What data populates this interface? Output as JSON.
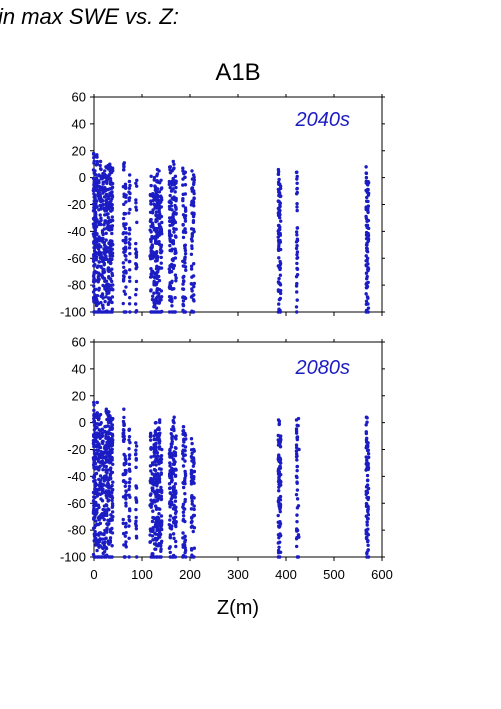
{
  "page": {
    "title": "in max SWE vs. Z:"
  },
  "colors": {
    "points": "#1c1cc4",
    "decade_label": "#1c1cc4",
    "frame": "#000000"
  },
  "chart_data": [
    {
      "type": "scatter",
      "title": "A1B",
      "annotation": "2040s",
      "xlabel": "",
      "ylabel": "",
      "xlim": [
        0,
        600
      ],
      "ylim": [
        -100,
        60
      ],
      "yticks": [
        -100,
        -80,
        -60,
        -40,
        -20,
        0,
        20,
        40,
        60
      ],
      "xticks": [
        0,
        100,
        200,
        300,
        400,
        500,
        600
      ],
      "show_x_tick_labels": false,
      "grid": false,
      "columns": [
        {
          "x": 0,
          "top": 18,
          "count": 70
        },
        {
          "x": 3,
          "top": 5,
          "count": 45
        },
        {
          "x": 6,
          "top": 17,
          "count": 40
        },
        {
          "x": 10,
          "top": 2,
          "count": 40
        },
        {
          "x": 14,
          "top": 12,
          "count": 35
        },
        {
          "x": 18,
          "top": 3,
          "count": 40
        },
        {
          "x": 22,
          "top": 5,
          "count": 35
        },
        {
          "x": 26,
          "top": 8,
          "count": 50
        },
        {
          "x": 30,
          "top": 9,
          "count": 50
        },
        {
          "x": 34,
          "top": 10,
          "count": 55
        },
        {
          "x": 38,
          "top": 7,
          "count": 45
        },
        {
          "x": 62,
          "top": 11,
          "count": 30
        },
        {
          "x": 66,
          "top": -5,
          "count": 25
        },
        {
          "x": 74,
          "top": 2,
          "count": 25
        },
        {
          "x": 88,
          "top": -2,
          "count": 22
        },
        {
          "x": 118,
          "top": 1,
          "count": 30
        },
        {
          "x": 122,
          "top": -12,
          "count": 25
        },
        {
          "x": 126,
          "top": 0,
          "count": 30
        },
        {
          "x": 129,
          "top": -7,
          "count": 40
        },
        {
          "x": 132,
          "top": 6,
          "count": 45
        },
        {
          "x": 136,
          "top": 5,
          "count": 40
        },
        {
          "x": 140,
          "top": -2,
          "count": 30
        },
        {
          "x": 158,
          "top": 8,
          "count": 35
        },
        {
          "x": 162,
          "top": 5,
          "count": 30
        },
        {
          "x": 166,
          "top": 12,
          "count": 35
        },
        {
          "x": 170,
          "top": 1,
          "count": 30
        },
        {
          "x": 186,
          "top": 7,
          "count": 30
        },
        {
          "x": 190,
          "top": 4,
          "count": 28
        },
        {
          "x": 204,
          "top": 5,
          "count": 30
        },
        {
          "x": 208,
          "top": 2,
          "count": 28
        },
        {
          "x": 385,
          "top": 6,
          "count": 45
        },
        {
          "x": 388,
          "top": -5,
          "count": 35
        },
        {
          "x": 423,
          "top": 4,
          "count": 35
        },
        {
          "x": 568,
          "top": 8,
          "count": 45
        },
        {
          "x": 571,
          "top": -3,
          "count": 35
        }
      ]
    },
    {
      "type": "scatter",
      "title": "",
      "annotation": "2080s",
      "xlabel": "Z(m)",
      "ylabel": "",
      "xlim": [
        0,
        600
      ],
      "ylim": [
        -100,
        60
      ],
      "yticks": [
        -100,
        -80,
        -60,
        -40,
        -20,
        0,
        20,
        40,
        60
      ],
      "xticks": [
        0,
        100,
        200,
        300,
        400,
        500,
        600
      ],
      "show_x_tick_labels": true,
      "grid": false,
      "columns": [
        {
          "x": 0,
          "top": 15,
          "count": 60
        },
        {
          "x": 3,
          "top": 6,
          "count": 40
        },
        {
          "x": 6,
          "top": 15,
          "count": 35
        },
        {
          "x": 10,
          "top": 5,
          "count": 35
        },
        {
          "x": 14,
          "top": 6,
          "count": 30
        },
        {
          "x": 18,
          "top": -5,
          "count": 35
        },
        {
          "x": 22,
          "top": -3,
          "count": 30
        },
        {
          "x": 26,
          "top": 10,
          "count": 50
        },
        {
          "x": 30,
          "top": 8,
          "count": 50
        },
        {
          "x": 34,
          "top": 5,
          "count": 55
        },
        {
          "x": 38,
          "top": 3,
          "count": 45
        },
        {
          "x": 62,
          "top": 10,
          "count": 30
        },
        {
          "x": 66,
          "top": -25,
          "count": 25
        },
        {
          "x": 74,
          "top": -5,
          "count": 25
        },
        {
          "x": 88,
          "top": -15,
          "count": 22
        },
        {
          "x": 118,
          "top": -8,
          "count": 30
        },
        {
          "x": 122,
          "top": -30,
          "count": 25
        },
        {
          "x": 126,
          "top": -10,
          "count": 30
        },
        {
          "x": 129,
          "top": 0,
          "count": 40
        },
        {
          "x": 132,
          "top": -5,
          "count": 45
        },
        {
          "x": 136,
          "top": 2,
          "count": 40
        },
        {
          "x": 140,
          "top": -20,
          "count": 30
        },
        {
          "x": 158,
          "top": -20,
          "count": 35
        },
        {
          "x": 162,
          "top": -5,
          "count": 30
        },
        {
          "x": 166,
          "top": 4,
          "count": 35
        },
        {
          "x": 170,
          "top": -10,
          "count": 30
        },
        {
          "x": 186,
          "top": -3,
          "count": 30
        },
        {
          "x": 190,
          "top": -8,
          "count": 28
        },
        {
          "x": 204,
          "top": -12,
          "count": 30
        },
        {
          "x": 208,
          "top": -20,
          "count": 28
        },
        {
          "x": 385,
          "top": 2,
          "count": 45
        },
        {
          "x": 388,
          "top": -10,
          "count": 35
        },
        {
          "x": 423,
          "top": 2,
          "count": 35
        },
        {
          "x": 426,
          "top": 3,
          "count": 5
        },
        {
          "x": 568,
          "top": 4,
          "count": 40
        },
        {
          "x": 571,
          "top": -15,
          "count": 35
        }
      ]
    }
  ]
}
